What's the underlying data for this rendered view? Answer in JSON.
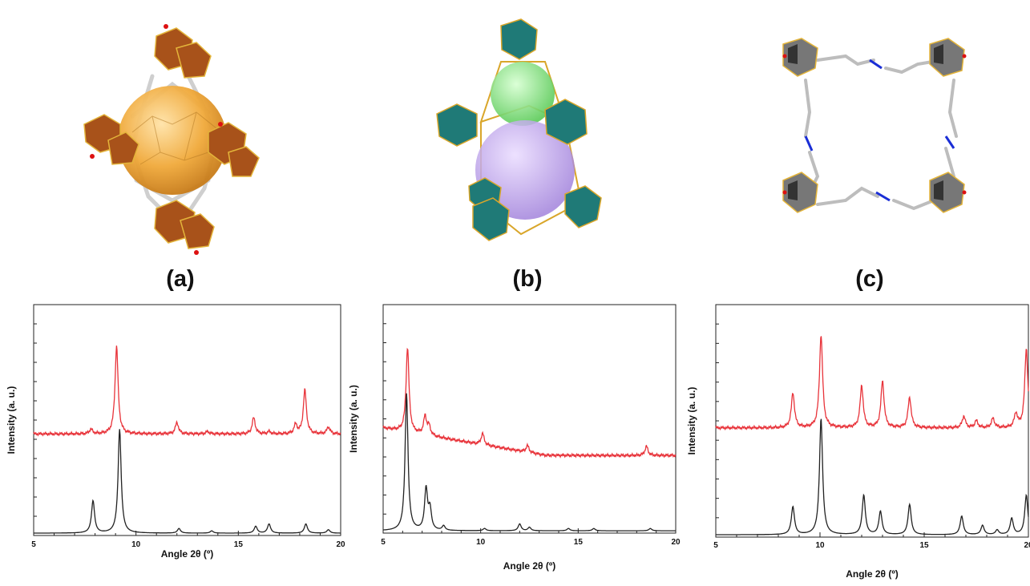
{
  "panel_labels": {
    "a": "(a)",
    "b": "(b)",
    "c": "(c)"
  },
  "colors": {
    "top_series": "#e8333a",
    "bottom_series": "#222222",
    "pore_orange": "#f0a93a",
    "pore_green": "#7fe07a",
    "pore_purple": "#b59ae6",
    "cluster_teal": "#1f7a77",
    "cluster_brown": "#a8521a"
  },
  "chart_data": [
    {
      "type": "line",
      "xlabel": "Angle 2θ (º)",
      "ylabel": "Intensity (a. u.)",
      "xlim": [
        5,
        20
      ],
      "ylim": [
        0,
        1
      ],
      "xticks": [
        5,
        10,
        15,
        20
      ],
      "series": [
        {
          "offset": 0.44,
          "peaks": [
            [
              7.8,
              0.02
            ],
            [
              9.05,
              0.38
            ],
            [
              12.0,
              0.05
            ],
            [
              13.5,
              0.01
            ],
            [
              15.75,
              0.07
            ],
            [
              16.5,
              0.01
            ],
            [
              17.8,
              0.04
            ],
            [
              18.25,
              0.19
            ],
            [
              19.4,
              0.03
            ]
          ],
          "drift": 0.0
        },
        {
          "offset": 0.01,
          "peaks": [
            [
              7.9,
              0.14
            ],
            [
              9.2,
              0.45
            ],
            [
              12.1,
              0.02
            ],
            [
              13.7,
              0.01
            ],
            [
              15.85,
              0.03
            ],
            [
              16.5,
              0.04
            ],
            [
              18.3,
              0.04
            ],
            [
              19.4,
              0.015
            ]
          ],
          "drift": 0.0
        }
      ]
    },
    {
      "type": "line",
      "xlabel": "Angle 2θ (º)",
      "ylabel": "Intensity (a. u.)",
      "xlim": [
        5,
        20
      ],
      "ylim": [
        0,
        1
      ],
      "xticks": [
        5,
        10,
        15,
        20
      ],
      "series": [
        {
          "offset": 0.46,
          "peaks": [
            [
              6.25,
              0.37
            ],
            [
              7.15,
              0.08
            ],
            [
              7.35,
              0.04
            ],
            [
              10.1,
              0.05
            ],
            [
              12.4,
              0.03
            ],
            [
              18.5,
              0.04
            ]
          ],
          "drift": -0.12
        },
        {
          "offset": 0.01,
          "peaks": [
            [
              6.2,
              0.6
            ],
            [
              7.2,
              0.18
            ],
            [
              7.4,
              0.09
            ],
            [
              8.1,
              0.02
            ],
            [
              10.2,
              0.01
            ],
            [
              12.0,
              0.03
            ],
            [
              12.5,
              0.015
            ],
            [
              14.5,
              0.01
            ],
            [
              15.8,
              0.01
            ],
            [
              18.7,
              0.01
            ]
          ],
          "drift": 0.0
        }
      ]
    },
    {
      "type": "line",
      "xlabel": "Angle 2θ (º)",
      "ylabel": "Intensity (a. u.)",
      "xlim": [
        5,
        20
      ],
      "ylim": [
        0,
        1
      ],
      "xticks": [
        5,
        10,
        15,
        20
      ],
      "series": [
        {
          "offset": 0.47,
          "peaks": [
            [
              8.7,
              0.15
            ],
            [
              10.05,
              0.4
            ],
            [
              12.0,
              0.18
            ],
            [
              13.0,
              0.2
            ],
            [
              14.3,
              0.13
            ],
            [
              16.9,
              0.05
            ],
            [
              17.5,
              0.03
            ],
            [
              18.3,
              0.04
            ],
            [
              19.4,
              0.06
            ],
            [
              19.9,
              0.34
            ]
          ],
          "drift": 0.0
        },
        {
          "offset": 0.01,
          "peaks": [
            [
              8.7,
              0.12
            ],
            [
              10.05,
              0.5
            ],
            [
              12.1,
              0.17
            ],
            [
              12.9,
              0.1
            ],
            [
              14.3,
              0.13
            ],
            [
              16.8,
              0.08
            ],
            [
              17.8,
              0.04
            ],
            [
              18.5,
              0.02
            ],
            [
              19.2,
              0.07
            ],
            [
              19.9,
              0.17
            ]
          ],
          "drift": 0.0
        }
      ]
    }
  ]
}
